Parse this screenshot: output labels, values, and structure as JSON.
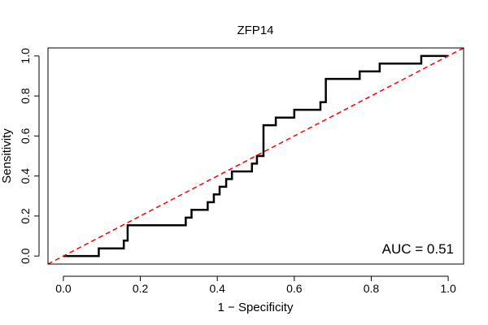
{
  "chart_data": {
    "type": "line",
    "title": "ZFP14",
    "xlabel": "1 − Specificity",
    "ylabel": "Sensitivity",
    "xlim": [
      -0.04,
      1.04
    ],
    "ylim": [
      -0.04,
      1.04
    ],
    "xticks": [
      0.0,
      0.2,
      0.4,
      0.6,
      0.8,
      1.0
    ],
    "xtick_labels": [
      "0.0",
      "0.2",
      "0.4",
      "0.6",
      "0.8",
      "1.0"
    ],
    "yticks": [
      0.0,
      0.2,
      0.4,
      0.6,
      0.8,
      1.0
    ],
    "ytick_labels": [
      "0.0",
      "0.2",
      "0.4",
      "0.6",
      "0.8",
      "1.0"
    ],
    "grid": false,
    "annotation": "AUC = 0.51",
    "series": [
      {
        "color": "#000000",
        "style": "step",
        "x": [
          0.0,
          0.092,
          0.092,
          0.157,
          0.157,
          0.167,
          0.167,
          0.318,
          0.318,
          0.333,
          0.333,
          0.375,
          0.375,
          0.391,
          0.391,
          0.406,
          0.406,
          0.423,
          0.423,
          0.438,
          0.438,
          0.445,
          0.445,
          0.49,
          0.49,
          0.503,
          0.503,
          0.52,
          0.52,
          0.53,
          0.53,
          0.552,
          0.552,
          0.6,
          0.6,
          0.668,
          0.668,
          0.682,
          0.682,
          0.77,
          0.77,
          0.822,
          0.822,
          0.93,
          0.93,
          1.0
        ],
        "y": [
          0.0,
          0.0,
          0.038,
          0.038,
          0.077,
          0.077,
          0.154,
          0.154,
          0.192,
          0.192,
          0.231,
          0.231,
          0.269,
          0.269,
          0.308,
          0.308,
          0.346,
          0.346,
          0.385,
          0.385,
          0.423,
          0.423,
          0.423,
          0.423,
          0.462,
          0.462,
          0.5,
          0.5,
          0.654,
          0.654,
          0.654,
          0.654,
          0.692,
          0.692,
          0.731,
          0.731,
          0.769,
          0.769,
          0.885,
          0.885,
          0.923,
          0.923,
          0.962,
          0.962,
          1.0,
          1.0
        ]
      },
      {
        "color": "#ff0000",
        "style": "dashed",
        "x": [
          -0.04,
          1.04
        ],
        "y": [
          -0.04,
          1.04
        ]
      }
    ]
  }
}
